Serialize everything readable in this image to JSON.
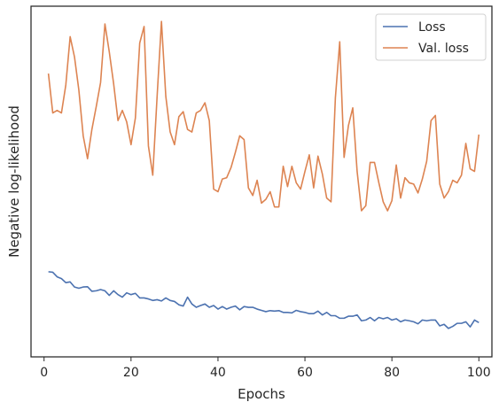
{
  "chart_data": {
    "type": "line",
    "title": "",
    "xlabel": "Epochs",
    "ylabel": "Negative log-likelihood",
    "xlim": [
      -3,
      103
    ],
    "ylim": [
      -0.4,
      13.4
    ],
    "x_ticks": [
      0,
      20,
      40,
      60,
      80,
      100
    ],
    "y_ticks_shown": false,
    "grid": false,
    "legend_position": "top-right",
    "series": [
      {
        "name": "Loss",
        "color": "#4c72b0",
        "x": [
          1,
          2,
          3,
          4,
          5,
          6,
          7,
          8,
          9,
          10,
          11,
          12,
          13,
          14,
          15,
          16,
          17,
          18,
          19,
          20,
          21,
          22,
          23,
          24,
          25,
          26,
          27,
          28,
          29,
          30,
          31,
          32,
          33,
          34,
          35,
          36,
          37,
          38,
          39,
          40,
          41,
          42,
          43,
          44,
          45,
          46,
          47,
          48,
          49,
          50,
          51,
          52,
          53,
          54,
          55,
          56,
          57,
          58,
          59,
          60,
          61,
          62,
          63,
          64,
          65,
          66,
          67,
          68,
          69,
          70,
          71,
          72,
          73,
          74,
          75,
          76,
          77,
          78,
          79,
          80,
          81,
          82,
          83,
          84,
          85,
          86,
          87,
          88,
          89,
          90,
          91,
          92,
          93,
          94,
          95,
          96,
          97,
          98,
          99,
          100
        ],
        "values": [
          2.95,
          2.93,
          2.75,
          2.68,
          2.52,
          2.55,
          2.35,
          2.3,
          2.35,
          2.36,
          2.18,
          2.2,
          2.25,
          2.2,
          2.02,
          2.2,
          2.05,
          1.95,
          2.12,
          2.05,
          2.1,
          1.92,
          1.92,
          1.88,
          1.82,
          1.85,
          1.8,
          1.92,
          1.82,
          1.78,
          1.65,
          1.6,
          1.95,
          1.68,
          1.55,
          1.62,
          1.68,
          1.55,
          1.62,
          1.48,
          1.58,
          1.48,
          1.55,
          1.6,
          1.45,
          1.58,
          1.55,
          1.55,
          1.48,
          1.43,
          1.38,
          1.42,
          1.4,
          1.42,
          1.35,
          1.35,
          1.33,
          1.43,
          1.38,
          1.35,
          1.3,
          1.3,
          1.4,
          1.25,
          1.35,
          1.22,
          1.22,
          1.12,
          1.12,
          1.2,
          1.2,
          1.25,
          1.02,
          1.05,
          1.15,
          1.02,
          1.15,
          1.1,
          1.15,
          1.05,
          1.1,
          0.98,
          1.05,
          1.02,
          0.98,
          0.9,
          1.05,
          1.02,
          1.05,
          1.05,
          0.82,
          0.88,
          0.72,
          0.8,
          0.92,
          0.92,
          0.98,
          0.78,
          1.05,
          0.95
        ]
      },
      {
        "name": "Val. loss",
        "color": "#dd8452",
        "x": [
          1,
          2,
          3,
          4,
          5,
          6,
          7,
          8,
          9,
          10,
          11,
          12,
          13,
          14,
          15,
          16,
          17,
          18,
          19,
          20,
          21,
          22,
          23,
          24,
          25,
          26,
          27,
          28,
          29,
          30,
          31,
          32,
          33,
          34,
          35,
          36,
          37,
          38,
          39,
          40,
          41,
          42,
          43,
          44,
          45,
          46,
          47,
          48,
          49,
          50,
          51,
          52,
          53,
          54,
          55,
          56,
          57,
          58,
          59,
          60,
          61,
          62,
          63,
          64,
          65,
          66,
          67,
          68,
          69,
          70,
          71,
          72,
          73,
          74,
          75,
          76,
          77,
          78,
          79,
          80,
          81,
          82,
          83,
          84,
          85,
          86,
          87,
          88,
          89,
          90,
          91,
          92,
          93,
          94,
          95,
          96,
          97,
          98,
          99,
          100
        ],
        "values": [
          10.75,
          9.2,
          9.3,
          9.2,
          10.3,
          12.2,
          11.4,
          10.1,
          8.3,
          7.4,
          8.55,
          9.45,
          10.4,
          12.7,
          11.6,
          10.35,
          8.9,
          9.3,
          8.85,
          7.95,
          9.0,
          11.95,
          12.6,
          7.9,
          6.75,
          9.85,
          12.8,
          9.85,
          8.45,
          7.95,
          9.05,
          9.25,
          8.55,
          8.45,
          9.2,
          9.3,
          9.6,
          8.9,
          6.2,
          6.1,
          6.6,
          6.65,
          7.05,
          7.65,
          8.3,
          8.15,
          6.25,
          5.95,
          6.55,
          5.65,
          5.8,
          6.1,
          5.5,
          5.5,
          7.1,
          6.3,
          7.1,
          6.45,
          6.2,
          6.9,
          7.55,
          6.25,
          7.5,
          6.8,
          5.85,
          5.7,
          9.8,
          12.0,
          7.45,
          8.7,
          9.4,
          6.9,
          5.35,
          5.55,
          7.25,
          7.25,
          6.45,
          5.7,
          5.35,
          5.75,
          7.15,
          5.85,
          6.65,
          6.45,
          6.4,
          6.05,
          6.6,
          7.3,
          8.9,
          9.1,
          6.4,
          5.85,
          6.1,
          6.55,
          6.45,
          6.75,
          8.0,
          7.0,
          6.9,
          8.35
        ]
      }
    ]
  }
}
